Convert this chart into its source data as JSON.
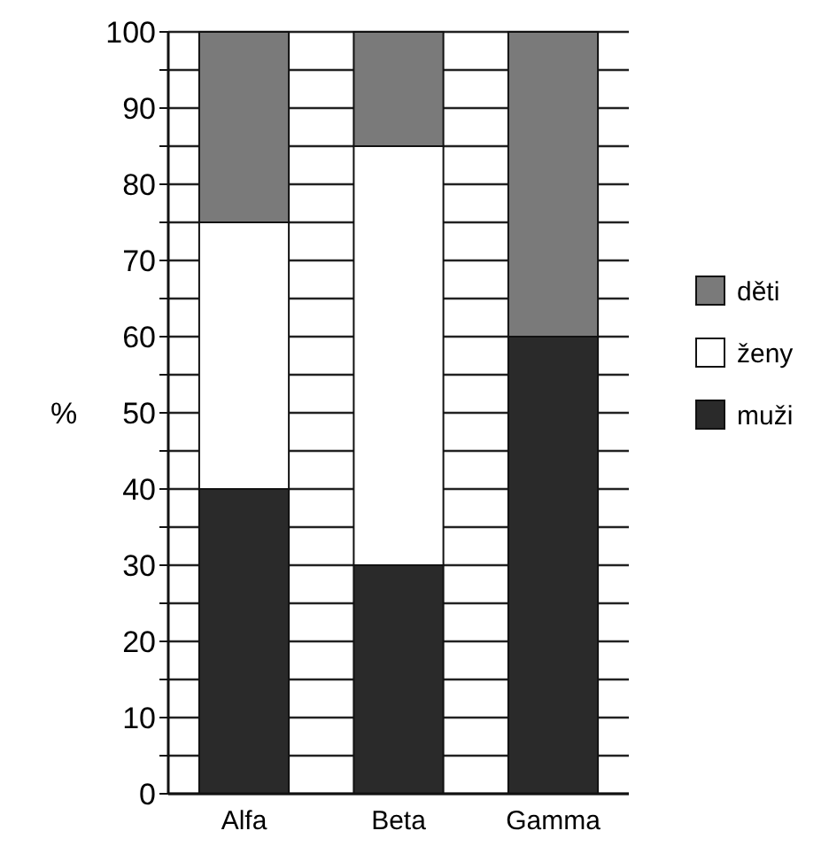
{
  "chart_data": {
    "type": "bar",
    "stacked": true,
    "ylabel": "%",
    "categories": [
      "Alfa",
      "Beta",
      "Gamma"
    ],
    "series": [
      {
        "name": "muži",
        "color": "#2a2a2a",
        "values": [
          40,
          30,
          60
        ]
      },
      {
        "name": "ženy",
        "color": "#ffffff",
        "values": [
          35,
          55,
          0
        ]
      },
      {
        "name": "děti",
        "color": "#7a7a7a",
        "values": [
          25,
          15,
          40
        ]
      }
    ],
    "ylim": [
      0,
      100
    ],
    "yticks": [
      0,
      {
        "value": 5,
        "label": null
      },
      10,
      {
        "value": 15,
        "label": null
      },
      20,
      {
        "value": 25,
        "label": null
      },
      30,
      {
        "value": 35,
        "label": null
      },
      40,
      {
        "value": 45,
        "label": null
      },
      50,
      {
        "value": 55,
        "label": null
      },
      60,
      {
        "value": 65,
        "label": null
      },
      70,
      {
        "value": 75,
        "label": null
      },
      80,
      {
        "value": 85,
        "label": null
      },
      90,
      {
        "value": 95,
        "label": null
      },
      100
    ],
    "grid": "y",
    "legend": "right"
  }
}
